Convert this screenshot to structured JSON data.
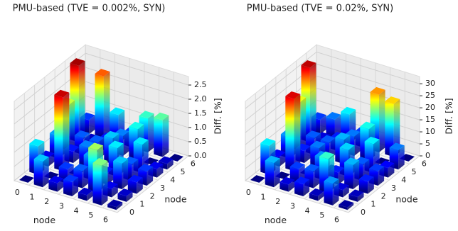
{
  "chart_data": [
    {
      "type": "bar3d",
      "title": "PMU-based (TVE = 0.002%, SYN)",
      "xlabel": "node",
      "ylabel": "node",
      "zlabel": "Diff. [%]",
      "x": [
        0,
        1,
        2,
        3,
        4,
        5,
        6
      ],
      "y": [
        0,
        1,
        2,
        3,
        4,
        5,
        6
      ],
      "values": [
        [
          0,
          1.0,
          0.3,
          0.8,
          1.6,
          2.7,
          0.5
        ],
        [
          0.9,
          0,
          2.6,
          0.4,
          0.6,
          0.2,
          2.2
        ],
        [
          0.3,
          0.5,
          0,
          0.7,
          0.6,
          0.4,
          1.0
        ],
        [
          0.5,
          0.6,
          0.8,
          0,
          0.9,
          0.7,
          0.5
        ],
        [
          0.2,
          1.5,
          0.4,
          1.0,
          0,
          1.1,
          1.2
        ],
        [
          1.4,
          0.3,
          0.9,
          0.6,
          1.0,
          0,
          1.3
        ],
        [
          0.1,
          0.2,
          0.4,
          0.5,
          0.3,
          0.2,
          0
        ]
      ],
      "zlim": [
        0,
        2.8
      ],
      "zticks": [
        {
          "value": 0,
          "label": "0.0"
        },
        0.5,
        {
          "value": 1,
          "label": "1.0"
        },
        1.5,
        {
          "value": 2,
          "label": "2.0"
        },
        2.5
      ],
      "colormap": "jet",
      "grid": true
    },
    {
      "type": "bar3d",
      "title": "PMU-based (TVE = 0.02%, SYN)",
      "xlabel": "node",
      "ylabel": "node",
      "zlabel": "Diff. [%]",
      "x": [
        0,
        1,
        2,
        3,
        4,
        5,
        6
      ],
      "y": [
        0,
        1,
        2,
        3,
        4,
        5,
        6
      ],
      "values": [
        [
          0,
          12,
          4,
          9,
          20,
          31,
          6
        ],
        [
          10,
          0,
          30,
          5,
          7,
          3,
          8
        ],
        [
          3,
          6,
          0,
          8,
          7,
          5,
          12
        ],
        [
          5,
          7,
          9,
          0,
          10,
          8,
          6
        ],
        [
          2,
          14,
          5,
          11,
          0,
          13,
          24
        ],
        [
          9,
          3,
          10,
          7,
          12,
          0,
          22
        ],
        [
          1,
          2,
          5,
          6,
          4,
          8,
          0
        ]
      ],
      "zlim": [
        0,
        33
      ],
      "zticks": [
        0,
        5,
        10,
        15,
        20,
        25,
        30
      ],
      "colormap": "jet",
      "grid": true
    }
  ]
}
